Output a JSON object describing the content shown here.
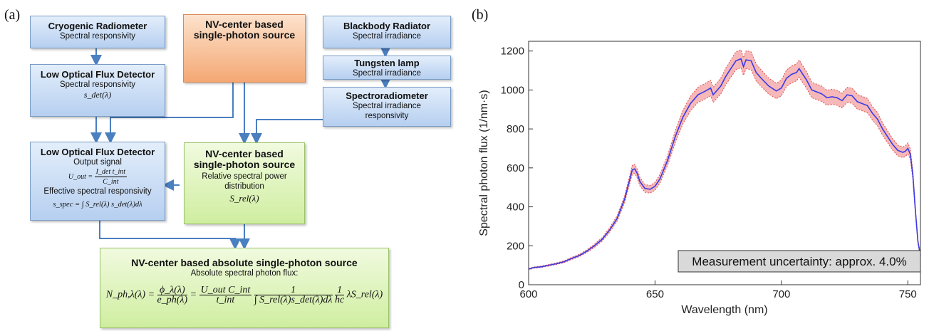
{
  "panel_a_label": "(a)",
  "panel_b_label": "(b)",
  "boxes": {
    "cryo": {
      "title": "Cryogenic Radiometer",
      "sub": "Spectral responsivity"
    },
    "nv_top": {
      "title1": "NV-center based",
      "title2": "single-photon source"
    },
    "blackbody": {
      "title": "Blackbody Radiator",
      "sub": "Spectral irradiance"
    },
    "tungsten": {
      "title": "Tungsten lamp",
      "sub": "Spectral irradiance"
    },
    "spectro": {
      "title": "Spectroradiometer",
      "sub1": "Spectral irradiance",
      "sub2": "responsivity"
    },
    "lofd1": {
      "title": "Low Optical Flux Detector",
      "sub": "Spectral responsivity",
      "math": "s_det(λ)"
    },
    "lofd2": {
      "title": "Low Optical Flux Detector",
      "sub": "Output signal",
      "eq_lhs": "U_out =",
      "eq_num": "I_det t_int",
      "eq_den": "C_int",
      "sub2": "Effective spectral responsivity",
      "eq2": "s_spec = ∫ S_rel(λ) s_det(λ)dλ"
    },
    "nv_mid": {
      "title1": "NV-center based",
      "title2": "single-photon source",
      "sub1": "Relative spectral power",
      "sub2": "distribution",
      "math": "S_rel(λ)"
    },
    "final": {
      "title": "NV-center based absolute single-photon source",
      "sub": "Absolute spectral photon flux:",
      "eq_lhs": "N_ph,λ(λ) =",
      "f1_num": "ϕ_λ(λ)",
      "f1_den": "e_ph(λ)",
      "eq_mid": "=",
      "f2_num": "U_out C_int",
      "f2_den": "t_int",
      "f3_num": "1",
      "f3_den": "∫ S_rel(λ)s_det(λ)dλ",
      "f4_num": "1",
      "f4_den": "hc",
      "eq_tail": "λS_rel(λ)"
    }
  },
  "chart_data": {
    "type": "line",
    "xlabel": "Wavelength (nm)",
    "ylabel": "Spectral photon flux (1/nm·s)",
    "xlim": [
      600,
      755
    ],
    "ylim": [
      0,
      1250
    ],
    "xticks": [
      600,
      650,
      700,
      750
    ],
    "yticks": [
      0,
      200,
      400,
      600,
      800,
      1000,
      1200
    ],
    "annotation": "Measurement uncertainty: approx. 4.0%",
    "uncertainty_fraction": 0.04,
    "colors": {
      "line": "#3a3ae8",
      "band": "#f4a6a6",
      "band_edge": "#e05050"
    },
    "series": [
      {
        "x": [
          600,
          602,
          605,
          608,
          611,
          614,
          617,
          620,
          623,
          626,
          629,
          632,
          635,
          638,
          640,
          641,
          642,
          643,
          644,
          646,
          648,
          650,
          652,
          655,
          658,
          661,
          664,
          667,
          670,
          672,
          673,
          674,
          676,
          678,
          680,
          682,
          684,
          685,
          686,
          688,
          690,
          692,
          695,
          698,
          700,
          702,
          704,
          706,
          707,
          708,
          710,
          712,
          714,
          716,
          718,
          720,
          722,
          724,
          726,
          728,
          730,
          732,
          734,
          736,
          738,
          740,
          742,
          744,
          746,
          748,
          749,
          750,
          751,
          752,
          753,
          754,
          755
        ],
        "y": [
          80,
          88,
          92,
          100,
          108,
          118,
          135,
          150,
          172,
          200,
          232,
          280,
          340,
          440,
          540,
          590,
          595,
          570,
          530,
          495,
          490,
          505,
          545,
          640,
          760,
          860,
          930,
          975,
          995,
          1010,
          975,
          990,
          1020,
          1070,
          1110,
          1150,
          1160,
          1120,
          1155,
          1150,
          1090,
          1060,
          1020,
          995,
          1010,
          1060,
          1080,
          1090,
          1110,
          1090,
          1050,
          1000,
          990,
          980,
          960,
          965,
          960,
          945,
          975,
          970,
          940,
          930,
          920,
          880,
          850,
          800,
          760,
          720,
          690,
          680,
          685,
          700,
          670,
          560,
          380,
          220,
          150
        ]
      }
    ]
  }
}
